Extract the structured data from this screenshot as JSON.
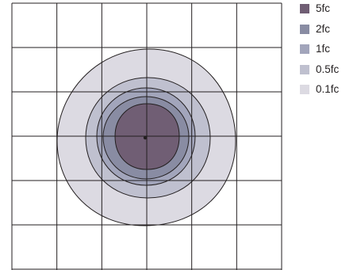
{
  "legend": {
    "items": [
      {
        "label": "5fc",
        "color": "#705e74"
      },
      {
        "label": "2fc",
        "color": "#898ca3"
      },
      {
        "label": "1fc",
        "color": "#a2a5bb"
      },
      {
        "label": "0.5fc",
        "color": "#bfc0cf"
      },
      {
        "label": "0.1fc",
        "color": "#dcdae2"
      }
    ]
  },
  "grid": {
    "columns": 6,
    "rows": 6
  },
  "contours": {
    "line_color": "#231f20",
    "grid_color": "#231f20"
  }
}
